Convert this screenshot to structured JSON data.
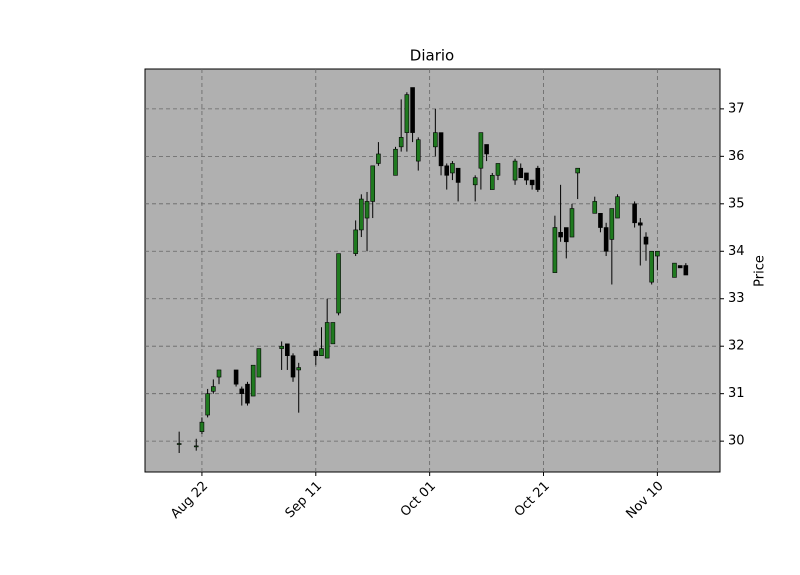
{
  "chart_data": {
    "type": "candlestick",
    "title": "Diario",
    "y_label": "Price",
    "up_color": "#1f7a1f",
    "down_color": "#000000",
    "grid": true,
    "x": [
      "Aug 18",
      "Aug 21",
      "Aug 22",
      "Aug 23",
      "Aug 24",
      "Aug 25",
      "Aug 28",
      "Aug 29",
      "Aug 30",
      "Aug 31",
      "Sep 01",
      "Sep 05",
      "Sep 06",
      "Sep 07",
      "Sep 08",
      "Sep 11",
      "Sep 12",
      "Sep 13",
      "Sep 14",
      "Sep 15",
      "Sep 18",
      "Sep 19",
      "Sep 20",
      "Sep 21",
      "Sep 22",
      "Sep 25",
      "Sep 26",
      "Sep 27",
      "Sep 28",
      "Sep 29",
      "Oct 02",
      "Oct 03",
      "Oct 04",
      "Oct 05",
      "Oct 06",
      "Oct 09",
      "Oct 10",
      "Oct 11",
      "Oct 12",
      "Oct 13",
      "Oct 16",
      "Oct 17",
      "Oct 18",
      "Oct 19",
      "Oct 20",
      "Oct 23",
      "Oct 24",
      "Oct 25",
      "Oct 26",
      "Oct 27",
      "Oct 30",
      "Oct 31",
      "Nov 01",
      "Nov 02",
      "Nov 03",
      "Nov 06",
      "Nov 07",
      "Nov 08",
      "Nov 09",
      "Nov 10",
      "Nov 13",
      "Nov 14",
      "Nov 15"
    ],
    "open": [
      29.95,
      29.9,
      30.2,
      30.55,
      31.05,
      31.35,
      31.5,
      31.1,
      31.2,
      30.95,
      31.35,
      31.95,
      32.05,
      31.8,
      31.5,
      31.9,
      31.8,
      31.75,
      32.05,
      32.7,
      33.95,
      34.45,
      34.7,
      35.05,
      35.85,
      35.6,
      36.2,
      36.5,
      37.45,
      35.9,
      36.2,
      36.5,
      35.8,
      35.65,
      35.75,
      35.4,
      35.75,
      36.25,
      35.3,
      35.6,
      35.5,
      35.75,
      35.65,
      35.5,
      35.75,
      33.55,
      34.4,
      34.5,
      34.3,
      35.65,
      34.8,
      34.8,
      34.5,
      34.25,
      34.7,
      35.0,
      34.6,
      34.3,
      33.35,
      33.9,
      33.45,
      33.7,
      33.7
    ],
    "high": [
      30.2,
      30.05,
      30.5,
      31.1,
      31.3,
      31.5,
      31.5,
      31.15,
      31.25,
      31.6,
      31.95,
      32.1,
      32.05,
      31.85,
      31.65,
      31.9,
      32.4,
      33.0,
      32.5,
      33.95,
      34.65,
      35.2,
      35.25,
      35.8,
      36.3,
      36.2,
      37.2,
      37.35,
      37.45,
      36.4,
      37.0,
      36.5,
      35.85,
      35.9,
      35.75,
      35.6,
      36.5,
      36.25,
      35.65,
      35.85,
      35.95,
      35.85,
      35.65,
      35.5,
      35.8,
      34.75,
      35.4,
      34.5,
      35.0,
      35.75,
      35.15,
      34.8,
      34.6,
      34.9,
      35.2,
      35.05,
      34.7,
      34.4,
      34.0,
      34.0,
      33.75,
      33.7,
      33.75
    ],
    "low": [
      29.75,
      29.8,
      30.15,
      30.5,
      31.0,
      31.2,
      31.15,
      30.75,
      30.75,
      30.95,
      31.35,
      31.5,
      31.5,
      31.25,
      30.6,
      31.6,
      31.8,
      31.75,
      32.05,
      32.65,
      33.9,
      34.3,
      34.0,
      34.7,
      35.8,
      35.6,
      36.1,
      36.1,
      36.3,
      35.7,
      36.0,
      35.6,
      35.3,
      35.5,
      35.05,
      35.05,
      35.3,
      35.9,
      35.3,
      35.5,
      35.4,
      35.55,
      35.4,
      35.3,
      35.25,
      33.55,
      34.2,
      33.85,
      34.3,
      35.1,
      34.8,
      34.4,
      33.9,
      33.3,
      34.7,
      34.5,
      33.7,
      33.8,
      33.3,
      33.6,
      33.45,
      33.65,
      33.5
    ],
    "close": [
      29.95,
      29.9,
      30.4,
      31.0,
      31.15,
      31.5,
      31.2,
      31.0,
      30.8,
      31.6,
      31.95,
      32.0,
      31.8,
      31.35,
      31.55,
      31.8,
      31.95,
      32.5,
      32.5,
      33.95,
      34.45,
      35.1,
      35.05,
      35.8,
      36.05,
      36.15,
      36.4,
      37.3,
      36.5,
      36.35,
      36.5,
      35.8,
      35.6,
      35.85,
      35.45,
      35.55,
      36.5,
      36.05,
      35.6,
      35.85,
      35.9,
      35.55,
      35.5,
      35.4,
      35.3,
      34.5,
      34.3,
      34.2,
      34.9,
      35.75,
      35.05,
      34.5,
      34.0,
      34.9,
      35.15,
      34.6,
      34.55,
      34.15,
      34.0,
      34.0,
      33.75,
      33.65,
      33.5
    ],
    "xlim": [
      "Aug 12",
      "Nov 21"
    ],
    "xticks": [
      "Aug 22",
      "Sep 11",
      "Oct 01",
      "Oct 21",
      "Nov 10"
    ],
    "ylim": [
      29.35,
      37.84
    ],
    "yticks": [
      30,
      31,
      32,
      33,
      34,
      35,
      36,
      37
    ]
  }
}
